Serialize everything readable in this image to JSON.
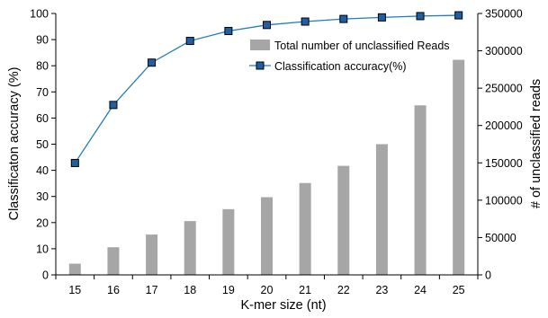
{
  "chart_data": {
    "type": "bar+line",
    "xlabel": "K-mer size (nt)",
    "ylabel_left": "Classificaton accuracy (%)",
    "ylabel_right": "# of unclassified reads",
    "categories": [
      "15",
      "16",
      "17",
      "18",
      "19",
      "20",
      "21",
      "22",
      "23",
      "24",
      "25"
    ],
    "ylim_left": [
      0,
      100
    ],
    "yticks_left": [
      "0",
      "10",
      "20",
      "30",
      "40",
      "50",
      "60",
      "70",
      "80",
      "90",
      "100"
    ],
    "ylim_right": [
      0,
      350000
    ],
    "yticks_right": [
      "0",
      "50000",
      "100000",
      "150000",
      "200000",
      "250000",
      "300000",
      "350000"
    ],
    "legend_position": "top-right",
    "grid": false,
    "series": [
      {
        "name": "Total number of unclassified Reads",
        "kind": "bar",
        "axis": "right",
        "color": "#a6a6a6",
        "values": [
          15000,
          37000,
          54000,
          72000,
          88000,
          104000,
          123000,
          146000,
          175000,
          227000,
          288000
        ]
      },
      {
        "name": "Classification accuracy(%)",
        "kind": "line",
        "axis": "left",
        "color": "#1f7bbf",
        "marker_fill": "#1f5fa6",
        "values": [
          42.8,
          65.0,
          81.2,
          89.5,
          93.3,
          95.6,
          96.9,
          97.9,
          98.5,
          99.0,
          99.3
        ]
      }
    ]
  }
}
